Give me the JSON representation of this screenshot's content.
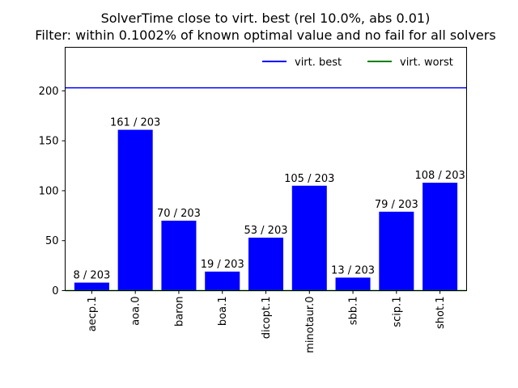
{
  "chart_data": {
    "type": "bar",
    "title": "SolverTime close to virt. best (rel 10.0%, abs 0.01)",
    "subtitle": "Filter: within 0.1002% of known optimal value and no fail for all solvers",
    "xlabel": "",
    "ylabel": "",
    "categories": [
      "aecp.1",
      "aoa.0",
      "baron",
      "boa.1",
      "dicopt.1",
      "minotaur.0",
      "sbb.1",
      "scip.1",
      "shot.1"
    ],
    "values": [
      8,
      161,
      70,
      19,
      53,
      105,
      13,
      79,
      108
    ],
    "bar_labels": [
      "8 / 203",
      "161 / 203",
      "70 / 203",
      "19 / 203",
      "53 / 203",
      "105 / 203",
      "13 / 203",
      "79 / 203",
      "108 / 203"
    ],
    "bar_color": "#0000ff",
    "ylim": [
      0,
      243.6
    ],
    "yticks": [
      0,
      50,
      100,
      150,
      200
    ],
    "reference_lines": [
      {
        "name": "virt. best",
        "value": 203,
        "color": "#0000ff"
      },
      {
        "name": "virt. worst",
        "value": 0,
        "color": "#008000"
      }
    ],
    "legend": {
      "position": "top-right",
      "entries": [
        {
          "label": "virt. best",
          "color": "#0000ff"
        },
        {
          "label": "virt. worst",
          "color": "#008000"
        }
      ]
    },
    "grid": false,
    "x_tick_rotation": "vertical"
  }
}
